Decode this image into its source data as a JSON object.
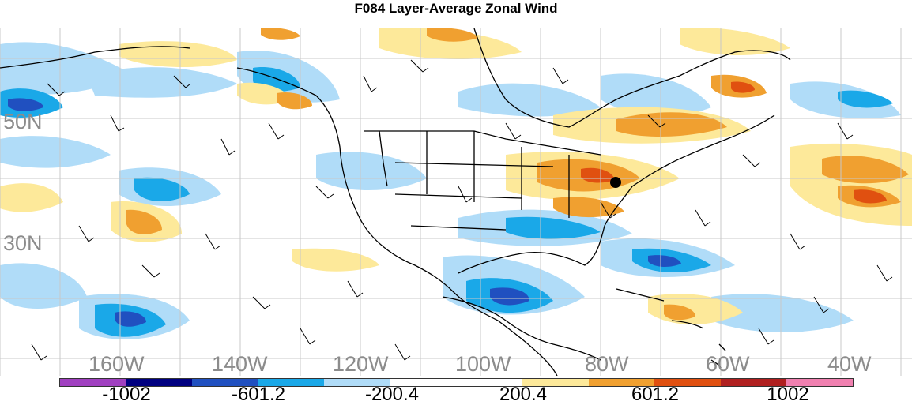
{
  "title": "F084 Layer-Average Zonal Wind",
  "map": {
    "lat_labels": [
      "50N",
      "30N"
    ],
    "lon_labels": [
      "160W",
      "140W",
      "120W",
      "100W",
      "80W",
      "60W",
      "40W"
    ],
    "marker": "black-dot-marker"
  },
  "colorbar": {
    "colors": [
      "#a040c0",
      "#000080",
      "#2050c0",
      "#1aa8e8",
      "#b0dcf8",
      "#ffffff",
      "#ffffff",
      "#fde99a",
      "#f0a030",
      "#e05010",
      "#b02020",
      "#f080b0"
    ],
    "labels": [
      "-1002",
      "-601.2",
      "-200.4",
      "200.4",
      "601.2",
      "1002"
    ]
  }
}
